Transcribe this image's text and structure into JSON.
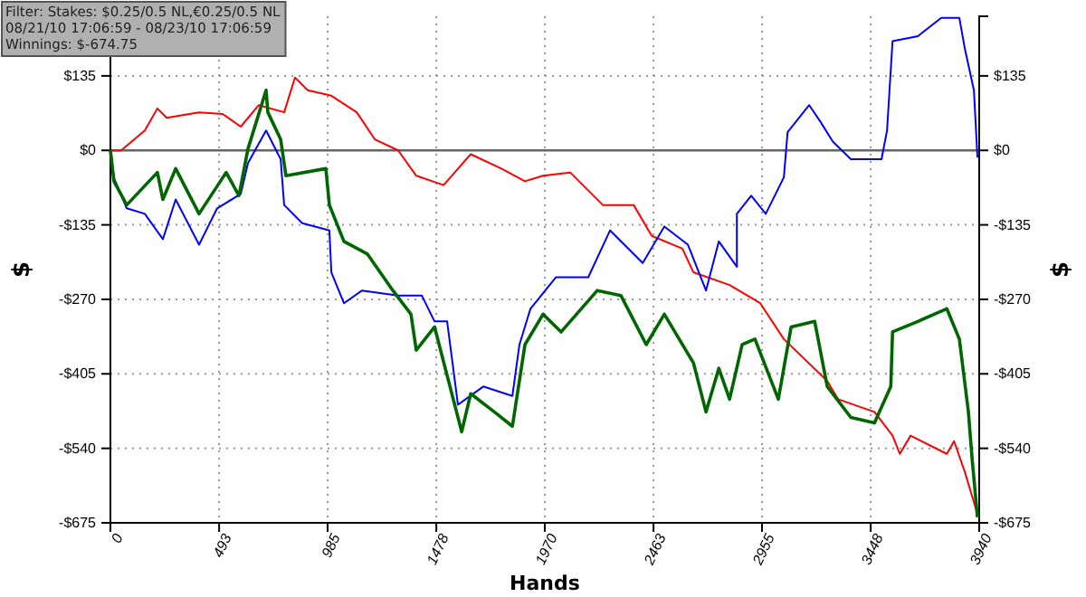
{
  "chart_data": {
    "type": "line",
    "xlabel": "Hands",
    "ylabel": "$",
    "y2label": "$",
    "annotations": [
      "Filter: Stakes: $0.25/0.5 NL,€0.25/0.5 NL",
      "08/21/10 17:06:59 - 08/23/10 17:06:59",
      "Winnings: $-674.75"
    ],
    "xlim": [
      0,
      3940
    ],
    "xticks": [
      0,
      493,
      985,
      1478,
      1970,
      2463,
      2955,
      3448,
      3940
    ],
    "ylim": [
      -675,
      243
    ],
    "yticks": [
      {
        "value": -675,
        "label": "-$675"
      },
      {
        "value": -540,
        "label": "-$540"
      },
      {
        "value": -405,
        "label": "-$405"
      },
      {
        "value": -270,
        "label": "-$270"
      },
      {
        "value": -135,
        "label": "-$135"
      },
      {
        "value": 0,
        "label": "$0"
      },
      {
        "value": 135,
        "label": "$135"
      }
    ],
    "y2lim": [
      -675,
      243
    ],
    "y2ticks": [
      {
        "value": -675,
        "label": "-$675"
      },
      {
        "value": -540,
        "label": "-$540"
      },
      {
        "value": -405,
        "label": "-$405"
      },
      {
        "value": -270,
        "label": "-$270"
      },
      {
        "value": -135,
        "label": "-$135"
      },
      {
        "value": 0,
        "label": "$0"
      },
      {
        "value": 135,
        "label": "$135"
      }
    ],
    "grid": true,
    "ref_lines": [
      {
        "axis": "y",
        "value": 0,
        "color": "#666666"
      }
    ],
    "series": [
      {
        "color": "#ff0000",
        "x": [
          0,
          49,
          156,
          213,
          255,
          402,
          509,
          591,
          673,
          788,
          837,
          895,
          1002,
          1117,
          1199,
          1305,
          1387,
          1511,
          1634,
          1773,
          1880,
          1962,
          2085,
          2233,
          2373,
          2455,
          2594,
          2644,
          2808,
          2947,
          3054,
          3251,
          3300,
          3465,
          3547,
          3580,
          3629,
          3793,
          3826,
          3875,
          3932,
          3940
        ],
        "values": [
          0,
          0,
          36,
          76,
          59,
          69,
          66,
          43,
          82,
          69,
          132,
          109,
          99,
          69,
          20,
          0,
          -46,
          -63,
          -7,
          -33,
          -56,
          -46,
          -40,
          -99,
          -99,
          -155,
          -178,
          -221,
          -244,
          -277,
          -342,
          -418,
          -451,
          -474,
          -517,
          -550,
          -517,
          -550,
          -527,
          -583,
          -659,
          -665
        ]
      },
      {
        "color": "#0000ff",
        "x": [
          0,
          16,
          74,
          156,
          238,
          296,
          402,
          484,
          591,
          624,
          706,
          772,
          788,
          870,
          993,
          1002,
          1059,
          1141,
          1305,
          1412,
          1470,
          1527,
          1576,
          1691,
          1823,
          1855,
          1905,
          2020,
          2167,
          2266,
          2414,
          2512,
          2619,
          2701,
          2759,
          2841,
          2841,
          2906,
          2972,
          3054,
          3071,
          3169,
          3218,
          3276,
          3358,
          3497,
          3522,
          3547,
          3662,
          3768,
          3850,
          3875,
          3916,
          3932
        ],
        "values": [
          0,
          -50,
          -105,
          -115,
          -161,
          -89,
          -171,
          -105,
          -79,
          -23,
          36,
          -16,
          -99,
          -132,
          -145,
          -221,
          -277,
          -254,
          -263,
          -263,
          -310,
          -310,
          -461,
          -428,
          -445,
          -352,
          -287,
          -230,
          -230,
          -145,
          -204,
          -138,
          -171,
          -254,
          -165,
          -211,
          -115,
          -82,
          -115,
          -49,
          33,
          82,
          53,
          16,
          -16,
          -16,
          36,
          198,
          207,
          240,
          240,
          184,
          109,
          -13
        ]
      },
      {
        "color": "#006600",
        "x": [
          0,
          16,
          74,
          213,
          238,
          296,
          402,
          525,
          583,
          624,
          706,
          714,
          772,
          796,
          977,
          993,
          1059,
          1166,
          1281,
          1363,
          1387,
          1470,
          1527,
          1593,
          1634,
          1741,
          1823,
          1880,
          1962,
          2044,
          2208,
          2315,
          2430,
          2512,
          2644,
          2701,
          2759,
          2808,
          2865,
          2923,
          3029,
          3087,
          3194,
          3251,
          3358,
          3465,
          3539,
          3547,
          3662,
          3793,
          3850,
          3891,
          3908,
          3932
        ],
        "values": [
          0,
          -56,
          -99,
          -40,
          -89,
          -33,
          -115,
          -40,
          -82,
          3,
          109,
          69,
          20,
          -46,
          -33,
          -99,
          -165,
          -188,
          -254,
          -297,
          -362,
          -320,
          -408,
          -510,
          -441,
          -474,
          -500,
          -352,
          -297,
          -329,
          -254,
          -263,
          -352,
          -297,
          -385,
          -474,
          -395,
          -451,
          -352,
          -342,
          -451,
          -320,
          -310,
          -428,
          -484,
          -494,
          -428,
          -329,
          -310,
          -287,
          -342,
          -474,
          -560,
          -665
        ]
      }
    ]
  }
}
